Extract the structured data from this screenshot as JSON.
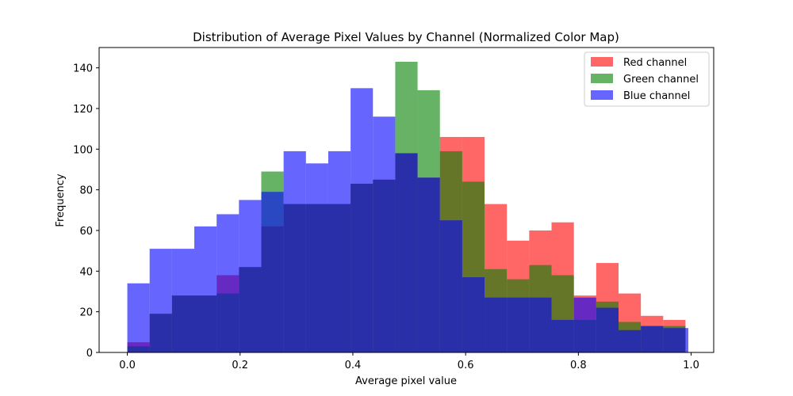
{
  "chart_data": {
    "type": "bar",
    "title": "Distribution of Average Pixel Values by Channel (Normalized Color Map)",
    "xlabel": "Average pixel value",
    "ylabel": "Frequency",
    "xlim": [
      -0.05,
      1.04
    ],
    "ylim": [
      0,
      150
    ],
    "xticks": [
      "0.0",
      "0.2",
      "0.4",
      "0.6",
      "0.8",
      "1.0"
    ],
    "yticks": [
      "0",
      "20",
      "40",
      "60",
      "80",
      "100",
      "120",
      "140"
    ],
    "grid": false,
    "legend_position": "top-right",
    "series": [
      {
        "name": "Red channel",
        "color": "#ff0000",
        "alpha": 0.6,
        "bin_edges": [
          0.0,
          0.0396,
          0.0792,
          0.1188,
          0.1584,
          0.198,
          0.2376,
          0.2772,
          0.3168,
          0.3564,
          0.396,
          0.4356,
          0.4752,
          0.5148,
          0.5544,
          0.594,
          0.6336,
          0.6732,
          0.7128,
          0.7524,
          0.792,
          0.8316,
          0.8712,
          0.9108,
          0.9504,
          0.99
        ],
        "values": [
          5,
          19,
          28,
          28,
          38,
          42,
          62,
          73,
          73,
          73,
          83,
          85,
          98,
          86,
          106,
          106,
          73,
          55,
          60,
          64,
          28,
          44,
          29,
          18,
          16
        ]
      },
      {
        "name": "Green channel",
        "color": "#008000",
        "alpha": 0.6,
        "bin_edges": [
          0.0,
          0.0396,
          0.0792,
          0.1188,
          0.1584,
          0.198,
          0.2376,
          0.2772,
          0.3168,
          0.3564,
          0.396,
          0.4356,
          0.4752,
          0.5148,
          0.5544,
          0.594,
          0.6336,
          0.6732,
          0.7128,
          0.7524,
          0.792,
          0.8316,
          0.8712,
          0.9108,
          0.9504,
          0.99
        ],
        "values": [
          3,
          19,
          28,
          28,
          29,
          42,
          89,
          73,
          73,
          73,
          83,
          85,
          143,
          129,
          99,
          84,
          41,
          36,
          43,
          38,
          16,
          25,
          15,
          13,
          13
        ]
      },
      {
        "name": "Blue channel",
        "color": "#0000ff",
        "alpha": 0.6,
        "bin_edges": [
          0.0,
          0.0396,
          0.0792,
          0.1188,
          0.1584,
          0.198,
          0.2376,
          0.2772,
          0.3168,
          0.3564,
          0.396,
          0.4356,
          0.4752,
          0.5148,
          0.5544,
          0.594,
          0.6336,
          0.6732,
          0.7128,
          0.7524,
          0.792,
          0.8316,
          0.8712,
          0.9108,
          0.9504,
          0.995
        ],
        "values": [
          34,
          51,
          51,
          62,
          68,
          75,
          79,
          99,
          93,
          99,
          130,
          116,
          98,
          86,
          65,
          37,
          27,
          27,
          27,
          16,
          27,
          22,
          11,
          13,
          12
        ]
      }
    ]
  }
}
